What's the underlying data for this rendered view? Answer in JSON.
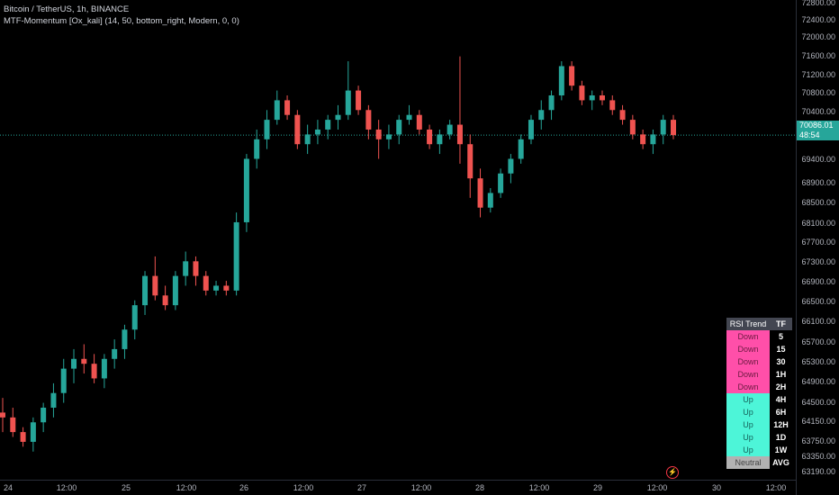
{
  "legend": {
    "line1": "Bitcoin / TetherUS, 1h, BINANCE",
    "line2": "MTF-Momentum [Ox_kali] (14, 50, bottom_right, Modern, 0, 0)"
  },
  "price_axis": [
    "72800.00",
    "72400.00",
    "72000.00",
    "71600.00",
    "71200.00",
    "70800.00",
    "70400.00",
    "69400.00",
    "68900.00",
    "68500.00",
    "68100.00",
    "67700.00",
    "67300.00",
    "66900.00",
    "66500.00",
    "66100.00",
    "65700.00",
    "65300.00",
    "64900.00",
    "64500.00",
    "64150.00",
    "63750.00",
    "63350.00",
    "63190.00"
  ],
  "last_price": {
    "value": "70086.01",
    "countdown": "48:54"
  },
  "time_axis": [
    "24",
    "12:00",
    "25",
    "12:00",
    "26",
    "12:00",
    "27",
    "12:00",
    "28",
    "12:00",
    "29",
    "12:00",
    "30",
    "12:00"
  ],
  "rsi_table": {
    "header": [
      "RSI Trend",
      "TF"
    ],
    "rows": [
      {
        "trend": "Down",
        "tf": "5"
      },
      {
        "trend": "Down",
        "tf": "15"
      },
      {
        "trend": "Down",
        "tf": "30"
      },
      {
        "trend": "Down",
        "tf": "1H"
      },
      {
        "trend": "Down",
        "tf": "2H"
      },
      {
        "trend": "Up",
        "tf": "4H"
      },
      {
        "trend": "Up",
        "tf": "6H"
      },
      {
        "trend": "Up",
        "tf": "12H"
      },
      {
        "trend": "Up",
        "tf": "1D"
      },
      {
        "trend": "Up",
        "tf": "1W"
      },
      {
        "trend": "Neutral",
        "tf": "AVG"
      }
    ]
  },
  "colors": {
    "up": "#26a69a",
    "down": "#ef5350",
    "bg": "#000000",
    "table_down": "#ff4fa9",
    "table_up": "#4df5d8",
    "neutral": "#b2b2b2"
  },
  "chart_data": {
    "type": "candlestick",
    "symbol": "Bitcoin / TetherUS",
    "interval": "1h",
    "exchange": "BINANCE",
    "ylim": [
      63000,
      73000
    ],
    "last_price": 70086.01,
    "ohlc": [
      [
        64400,
        64700,
        64000,
        64300
      ],
      [
        64300,
        64500,
        63900,
        64000
      ],
      [
        64000,
        64100,
        63700,
        63800
      ],
      [
        63800,
        64300,
        63600,
        64200
      ],
      [
        64200,
        64600,
        64000,
        64500
      ],
      [
        64500,
        65000,
        64300,
        64800
      ],
      [
        64800,
        65500,
        64600,
        65300
      ],
      [
        65300,
        65700,
        65000,
        65500
      ],
      [
        65500,
        65800,
        65200,
        65400
      ],
      [
        65400,
        65600,
        65000,
        65100
      ],
      [
        65100,
        65600,
        64900,
        65500
      ],
      [
        65500,
        65900,
        65300,
        65700
      ],
      [
        65700,
        66200,
        65500,
        66100
      ],
      [
        66100,
        66700,
        65900,
        66600
      ],
      [
        66600,
        67300,
        66400,
        67200
      ],
      [
        67200,
        67600,
        66700,
        66800
      ],
      [
        66800,
        67000,
        66500,
        66600
      ],
      [
        66600,
        67300,
        66500,
        67200
      ],
      [
        67200,
        67700,
        67000,
        67500
      ],
      [
        67500,
        67600,
        67000,
        67200
      ],
      [
        67200,
        67300,
        66800,
        66900
      ],
      [
        66900,
        67100,
        66800,
        67000
      ],
      [
        67000,
        67100,
        66800,
        66900
      ],
      [
        66900,
        68500,
        66800,
        68300
      ],
      [
        68300,
        69700,
        68100,
        69600
      ],
      [
        69600,
        70200,
        69400,
        70000
      ],
      [
        70000,
        70600,
        69800,
        70400
      ],
      [
        70400,
        71000,
        70300,
        70800
      ],
      [
        70800,
        70900,
        70400,
        70500
      ],
      [
        70500,
        70600,
        69800,
        69900
      ],
      [
        69900,
        70300,
        69700,
        70100
      ],
      [
        70100,
        70400,
        69900,
        70200
      ],
      [
        70200,
        70500,
        70000,
        70400
      ],
      [
        70400,
        70700,
        70200,
        70500
      ],
      [
        70500,
        71600,
        70400,
        71000
      ],
      [
        71000,
        71100,
        70500,
        70600
      ],
      [
        70600,
        70700,
        70000,
        70200
      ],
      [
        70200,
        70400,
        69600,
        70000
      ],
      [
        70000,
        70300,
        69800,
        70100
      ],
      [
        70100,
        70500,
        69900,
        70400
      ],
      [
        70400,
        70700,
        70300,
        70500
      ],
      [
        70500,
        70600,
        70100,
        70200
      ],
      [
        70200,
        70300,
        69800,
        69900
      ],
      [
        69900,
        70200,
        69700,
        70100
      ],
      [
        70100,
        70400,
        70000,
        70300
      ],
      [
        70300,
        71700,
        69500,
        69900
      ],
      [
        69900,
        70100,
        68800,
        69200
      ],
      [
        69200,
        69400,
        68400,
        68600
      ],
      [
        68600,
        69000,
        68500,
        68900
      ],
      [
        68900,
        69400,
        68800,
        69300
      ],
      [
        69300,
        69700,
        69100,
        69600
      ],
      [
        69600,
        70100,
        69500,
        70000
      ],
      [
        70000,
        70500,
        69900,
        70400
      ],
      [
        70400,
        70800,
        70200,
        70600
      ],
      [
        70600,
        71000,
        70400,
        70900
      ],
      [
        70900,
        71600,
        70800,
        71500
      ],
      [
        71500,
        71600,
        71000,
        71100
      ],
      [
        71100,
        71200,
        70700,
        70800
      ],
      [
        70800,
        71000,
        70600,
        70900
      ],
      [
        70900,
        71000,
        70700,
        70800
      ],
      [
        70800,
        70900,
        70500,
        70600
      ],
      [
        70600,
        70700,
        70300,
        70400
      ],
      [
        70400,
        70500,
        70000,
        70100
      ],
      [
        70100,
        70200,
        69800,
        69900
      ],
      [
        69900,
        70200,
        69700,
        70100
      ],
      [
        70100,
        70500,
        69900,
        70400
      ],
      [
        70400,
        70500,
        70000,
        70086
      ]
    ]
  }
}
